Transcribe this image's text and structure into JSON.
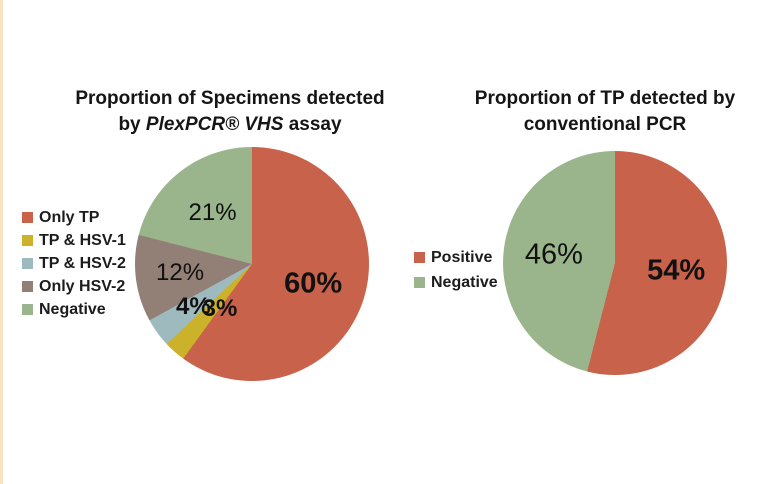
{
  "page": {
    "left_strip_color": "#f7e2c4",
    "background_color": "#ffffff"
  },
  "chart_data": [
    {
      "type": "pie",
      "title": "Proportion of Specimens detected by PlexPCR® VHS assay",
      "title_lines": {
        "line1": "Proportion of Specimens detected",
        "line2_pre": "by ",
        "line2_italic": "PlexPCR® VHS",
        "line2_post": " assay"
      },
      "start_angle_deg": 0,
      "direction": "clockwise",
      "legend_position": "left",
      "slices": [
        {
          "label": "Only TP",
          "value": 60,
          "data_label": "60%",
          "color": "#c8624a",
          "bold": true
        },
        {
          "label": "TP & HSV-1",
          "value": 3,
          "data_label": "3%",
          "color": "#ccb22a",
          "bold": true
        },
        {
          "label": "TP & HSV-2",
          "value": 4,
          "data_label": "4%",
          "color": "#9fbabf",
          "bold": true
        },
        {
          "label": "Only HSV-2",
          "value": 12,
          "data_label": "12%",
          "color": "#928076",
          "bold": false
        },
        {
          "label": "Negative",
          "value": 21,
          "data_label": "21%",
          "color": "#9ab58b",
          "bold": false
        }
      ],
      "label_nudges": {
        "1": [
          16,
          -9
        ]
      }
    },
    {
      "type": "pie",
      "title": "Proportion of TP detected by conventional PCR",
      "title_lines": {
        "line1": "Proportion of TP detected by",
        "line2": "conventional PCR"
      },
      "start_angle_deg": 0,
      "direction": "clockwise",
      "legend_position": "left",
      "slices": [
        {
          "label": "Positive",
          "value": 54,
          "data_label": "54%",
          "color": "#c8624a",
          "bold": true
        },
        {
          "label": "Negative",
          "value": 46,
          "data_label": "46%",
          "color": "#9ab58b",
          "bold": false
        }
      ],
      "label_nudges": {}
    }
  ]
}
